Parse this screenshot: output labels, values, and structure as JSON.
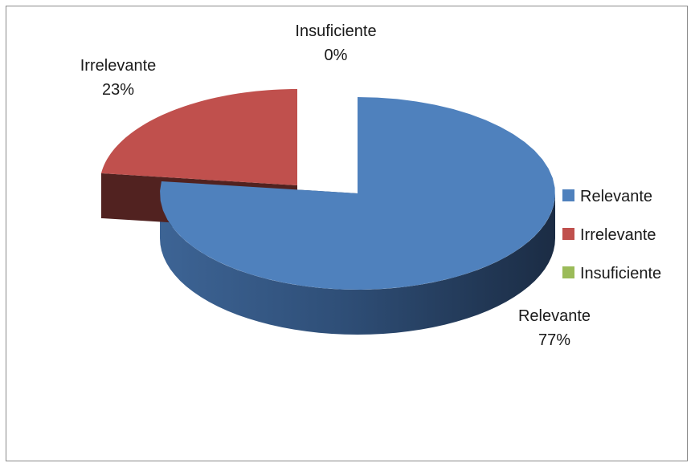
{
  "chart_data": {
    "type": "pie",
    "variant": "3d-exploded",
    "title": "",
    "slices": [
      {
        "category": "Relevante",
        "value": 77,
        "label": "77%",
        "color": "#4F81BD"
      },
      {
        "category": "Irrelevante",
        "value": 23,
        "label": "23%",
        "color": "#C0504D"
      },
      {
        "category": "Insuficiente",
        "value": 0,
        "label": "0%",
        "color": "#9BBB59"
      }
    ],
    "legend": {
      "position": "right",
      "entries": [
        {
          "label": "Relevante",
          "color": "#4F81BD"
        },
        {
          "label": "Irrelevante",
          "color": "#C0504D"
        },
        {
          "label": "Insuficiente",
          "color": "#9BBB59"
        }
      ]
    },
    "data_labels": "category-and-percent"
  }
}
